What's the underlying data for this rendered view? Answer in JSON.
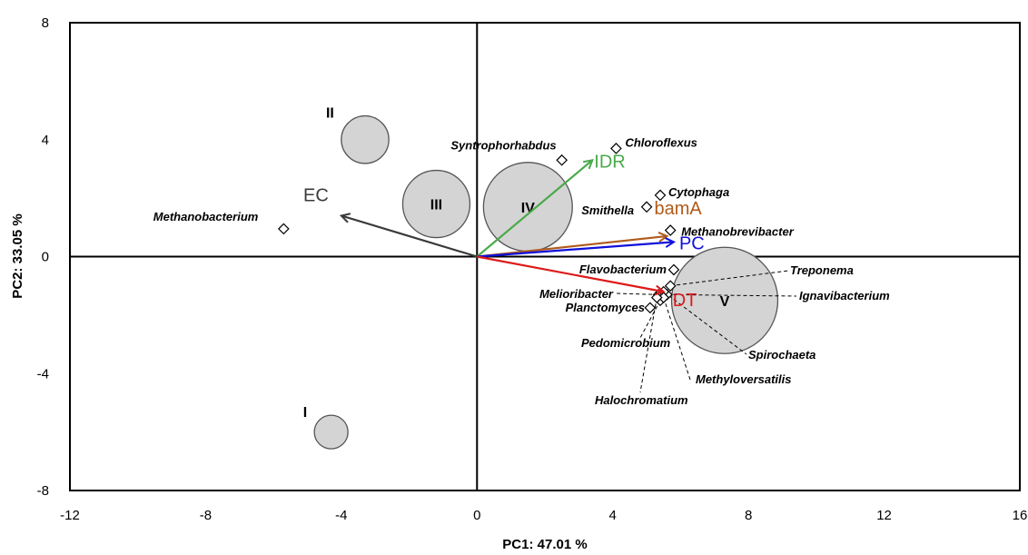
{
  "chart_data": {
    "type": "scatter",
    "subtype": "PCA biplot",
    "xlabel": "PC1: 47.01 %",
    "ylabel": "PC2: 33.05 %",
    "xlim": [
      -12,
      16
    ],
    "ylim": [
      -8,
      8
    ],
    "xticks": [
      "-12",
      "-8",
      "-4",
      "0",
      "4",
      "8",
      "12",
      "16"
    ],
    "yticks": [
      "8",
      "4",
      "0",
      "-4",
      "-8"
    ],
    "grid": false,
    "zero_lines": true,
    "groups": [
      {
        "label": "I",
        "x": -4.3,
        "y": -6.0,
        "size": 1
      },
      {
        "label": "II",
        "x": -3.3,
        "y": 4.0,
        "size": 2
      },
      {
        "label": "III",
        "x": -1.2,
        "y": 1.8,
        "size": 4
      },
      {
        "label": "IV",
        "x": 1.5,
        "y": 1.7,
        "size": 7
      },
      {
        "label": "V",
        "x": 7.3,
        "y": -1.5,
        "size": 10
      }
    ],
    "vectors": [
      {
        "label": "EC",
        "x": -4.0,
        "y": 1.4,
        "color": "#3a3a3a"
      },
      {
        "label": "IDR",
        "x": 3.4,
        "y": 3.3,
        "color": "#4aaa4a"
      },
      {
        "label": "bamA",
        "x": 5.6,
        "y": 0.7,
        "color": "#b05a1a"
      },
      {
        "label": "PC",
        "x": 5.8,
        "y": 0.5,
        "color": "#1010dd"
      },
      {
        "label": "DT",
        "x": 5.5,
        "y": -1.2,
        "color": "#dd1a1a"
      }
    ],
    "taxa": [
      {
        "label": "Methanobacterium",
        "x": -5.7,
        "y": 0.95
      },
      {
        "label": "Syntrophorhabdus",
        "x": 2.5,
        "y": 3.3
      },
      {
        "label": "Chloroflexus",
        "x": 4.1,
        "y": 3.7
      },
      {
        "label": "Cytophaga",
        "x": 5.4,
        "y": 2.1
      },
      {
        "label": "Smithella",
        "x": 5.0,
        "y": 1.7
      },
      {
        "label": "Methanobrevibacter",
        "x": 5.7,
        "y": 0.9
      },
      {
        "label": "Flavobacterium",
        "x": 5.8,
        "y": -0.45
      },
      {
        "label": "Treponema",
        "x": 5.7,
        "y": -1.0
      },
      {
        "label": "Ignavibacterium",
        "x": 5.6,
        "y": -1.3
      },
      {
        "label": "Melioribacter",
        "x": 5.35,
        "y": -1.3
      },
      {
        "label": "Planctomyces",
        "x": 5.1,
        "y": -1.75
      },
      {
        "label": "Spirochaeta",
        "x": 5.5,
        "y": -1.2
      },
      {
        "label": "Pedomicrobium",
        "x": 5.4,
        "y": -1.5
      },
      {
        "label": "Methyloversatilis",
        "x": 5.5,
        "y": -1.4
      },
      {
        "label": "Halochromatium",
        "x": 5.3,
        "y": -1.4
      }
    ]
  }
}
